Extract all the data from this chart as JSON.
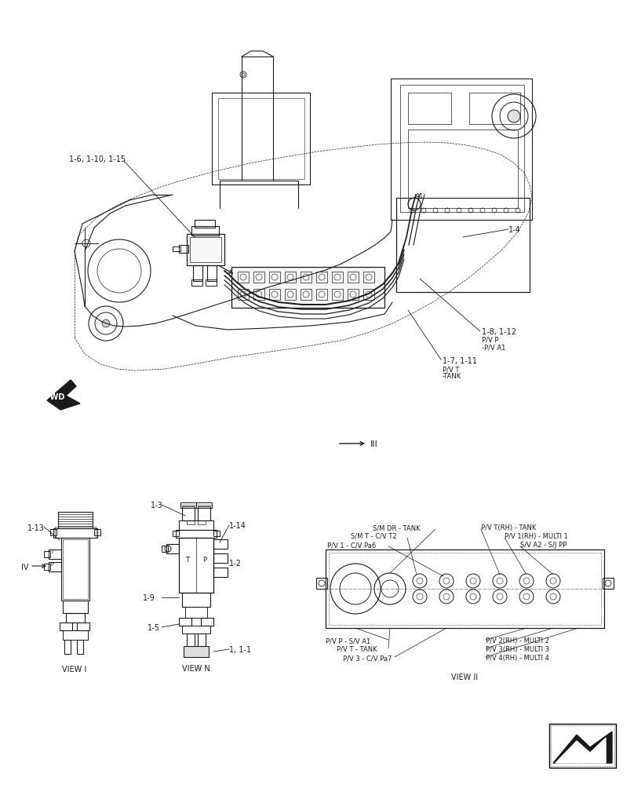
{
  "bg_color": "#ffffff",
  "line_color": "#1a1a1a",
  "fig_width": 8.08,
  "fig_height": 10.0,
  "dpi": 100,
  "labels": {
    "main_1": "1-6, 1-10, 1-15",
    "main_2": "1-4",
    "main_3": "1-8, 1-12",
    "main_3b": "P/V P",
    "main_3c": "-P/V A1",
    "main_4": "1-7, 1-11",
    "main_4b": "P/V T",
    "main_4c": "-TANK",
    "fwd": "FWD",
    "roman3": "III",
    "view1_label": "VIEW I",
    "view2_label": "VIEW N",
    "view3_label": "VIEW II",
    "iv_label": "IV",
    "v1_1_13": "1-13",
    "v1_1_3": "1-3",
    "v1_1_14": "1-14",
    "v1_1_9": "1-9",
    "v1_1_2": "1-2",
    "v1_1_5": "1-5",
    "v1_1_1": "1, 1-1",
    "v3_sm_dr": "S/M DR - TANK",
    "v3_sm_t": "S/M T - C/V T2",
    "v3_pv1": "P/V 1 - C/V Pa6",
    "v3_pvp": "P/V P - S/V A1",
    "v3_pvt": "P/V T - TANK",
    "v3_pv3": "P/V 3 - C/V Pa7",
    "v3_pvt_rh": "P/V T(RH) - TANK",
    "v3_pv1rh": "P/V 1(RH) - MULTI 1",
    "v3_sva2": "S/V A2 - S/J PP",
    "v3_pv2rh": "P/V 2(RH) - MULTI 2",
    "v3_pv3rh": "P/V 3(RH) - MULTI 3",
    "v3_pv4rh": "P/V 4(RH) - MULTI 4"
  }
}
